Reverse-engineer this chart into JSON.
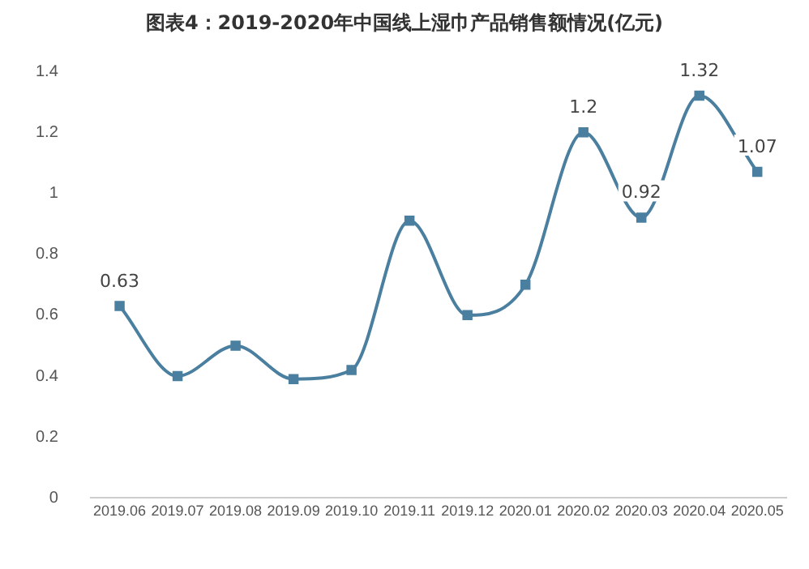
{
  "chart_data": {
    "type": "line",
    "title": "图表4：2019-2020年中国线上湿巾产品销售额情况(亿元)",
    "categories": [
      "2019.06",
      "2019.07",
      "2019.08",
      "2019.09",
      "2019.10",
      "2019.11",
      "2019.12",
      "2020.01",
      "2020.02",
      "2020.03",
      "2020.04",
      "2020.05"
    ],
    "series": [
      {
        "color": "#4a7fa0",
        "values": [
          0.63,
          0.4,
          0.5,
          0.39,
          0.42,
          0.91,
          0.6,
          0.7,
          1.2,
          0.92,
          1.32,
          1.07
        ],
        "value_labels": [
          "0.63",
          null,
          null,
          null,
          null,
          null,
          null,
          null,
          "1.2",
          "0.92",
          "1.32",
          "1.07"
        ]
      }
    ],
    "ylim": [
      0,
      1.4
    ],
    "yticks": [
      0,
      0.2,
      0.4,
      0.6,
      0.8,
      1,
      1.2,
      1.4
    ],
    "grid": false,
    "legend": false,
    "marker": "square",
    "line_style": "solid"
  }
}
